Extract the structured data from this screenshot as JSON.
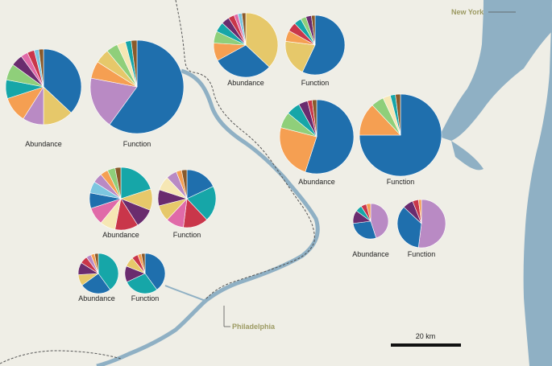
{
  "map": {
    "cities": [
      {
        "id": "new-york",
        "label": "New York"
      },
      {
        "id": "philadelphia",
        "label": "Philadelphia"
      }
    ],
    "scale_bar": {
      "label": "20 km"
    },
    "colors": {
      "land": "#efeee6",
      "water": "#8fb0c4",
      "border": "#555555",
      "city_label": "#9c9a62"
    }
  },
  "chart_data": {
    "type": "pie",
    "palette": {
      "blue": "#1f6fad",
      "yellow": "#e6c86a",
      "purple": "#b98ac4",
      "orange": "#f59f52",
      "teal": "#16a6a8",
      "green": "#8fcf7a",
      "plum": "#6a2c6e",
      "crimson": "#c9364a",
      "pink": "#e06aa8",
      "cream": "#f6e7b4",
      "lightblue": "#7cc6e0",
      "brown": "#8a5a2b"
    },
    "sites": [
      {
        "id": "site-west",
        "abundance": {
          "label": "Abundance",
          "slices": [
            {
              "color": "blue",
              "value": 37
            },
            {
              "color": "yellow",
              "value": 13
            },
            {
              "color": "purple",
              "value": 9
            },
            {
              "color": "orange",
              "value": 11
            },
            {
              "color": "teal",
              "value": 8
            },
            {
              "color": "green",
              "value": 7
            },
            {
              "color": "plum",
              "value": 5
            },
            {
              "color": "pink",
              "value": 3
            },
            {
              "color": "crimson",
              "value": 3
            },
            {
              "color": "lightblue",
              "value": 2
            },
            {
              "color": "brown",
              "value": 2
            }
          ]
        },
        "function": {
          "label": "Function",
          "slices": [
            {
              "color": "blue",
              "value": 60
            },
            {
              "color": "purple",
              "value": 18
            },
            {
              "color": "orange",
              "value": 6
            },
            {
              "color": "yellow",
              "value": 5
            },
            {
              "color": "green",
              "value": 4
            },
            {
              "color": "cream",
              "value": 3
            },
            {
              "color": "teal",
              "value": 2
            },
            {
              "color": "brown",
              "value": 2
            }
          ]
        }
      },
      {
        "id": "site-north",
        "abundance": {
          "label": "Abundance",
          "slices": [
            {
              "color": "yellow",
              "value": 37
            },
            {
              "color": "blue",
              "value": 30
            },
            {
              "color": "orange",
              "value": 9
            },
            {
              "color": "green",
              "value": 6
            },
            {
              "color": "teal",
              "value": 5
            },
            {
              "color": "plum",
              "value": 4
            },
            {
              "color": "crimson",
              "value": 3
            },
            {
              "color": "pink",
              "value": 2
            },
            {
              "color": "lightblue",
              "value": 2
            },
            {
              "color": "brown",
              "value": 2
            }
          ]
        },
        "function": {
          "label": "Function",
          "slices": [
            {
              "color": "blue",
              "value": 57
            },
            {
              "color": "yellow",
              "value": 20
            },
            {
              "color": "orange",
              "value": 6
            },
            {
              "color": "crimson",
              "value": 5
            },
            {
              "color": "teal",
              "value": 4
            },
            {
              "color": "green",
              "value": 3
            },
            {
              "color": "plum",
              "value": 3
            },
            {
              "color": "brown",
              "value": 2
            }
          ]
        }
      },
      {
        "id": "site-east",
        "abundance": {
          "label": "Abundance",
          "slices": [
            {
              "color": "blue",
              "value": 55
            },
            {
              "color": "orange",
              "value": 24
            },
            {
              "color": "green",
              "value": 7
            },
            {
              "color": "teal",
              "value": 6
            },
            {
              "color": "plum",
              "value": 4
            },
            {
              "color": "crimson",
              "value": 2
            },
            {
              "color": "brown",
              "value": 2
            }
          ]
        },
        "function": {
          "label": "Function",
          "slices": [
            {
              "color": "blue",
              "value": 75
            },
            {
              "color": "orange",
              "value": 13
            },
            {
              "color": "green",
              "value": 5
            },
            {
              "color": "cream",
              "value": 3
            },
            {
              "color": "teal",
              "value": 2
            },
            {
              "color": "brown",
              "value": 2
            }
          ]
        }
      },
      {
        "id": "site-center",
        "abundance": {
          "label": "Abundance",
          "slices": [
            {
              "color": "teal",
              "value": 20
            },
            {
              "color": "yellow",
              "value": 11
            },
            {
              "color": "plum",
              "value": 10
            },
            {
              "color": "crimson",
              "value": 12
            },
            {
              "color": "cream",
              "value": 8
            },
            {
              "color": "pink",
              "value": 9
            },
            {
              "color": "blue",
              "value": 8
            },
            {
              "color": "lightblue",
              "value": 6
            },
            {
              "color": "purple",
              "value": 5
            },
            {
              "color": "orange",
              "value": 4
            },
            {
              "color": "green",
              "value": 4
            },
            {
              "color": "brown",
              "value": 3
            }
          ]
        },
        "function": {
          "label": "Function",
          "slices": [
            {
              "color": "blue",
              "value": 18
            },
            {
              "color": "teal",
              "value": 20
            },
            {
              "color": "crimson",
              "value": 14
            },
            {
              "color": "pink",
              "value": 10
            },
            {
              "color": "yellow",
              "value": 9
            },
            {
              "color": "plum",
              "value": 9
            },
            {
              "color": "cream",
              "value": 8
            },
            {
              "color": "purple",
              "value": 6
            },
            {
              "color": "orange",
              "value": 3
            },
            {
              "color": "brown",
              "value": 3
            }
          ]
        }
      },
      {
        "id": "site-southwest",
        "abundance": {
          "label": "Abundance",
          "slices": [
            {
              "color": "teal",
              "value": 40
            },
            {
              "color": "blue",
              "value": 25
            },
            {
              "color": "yellow",
              "value": 9
            },
            {
              "color": "plum",
              "value": 10
            },
            {
              "color": "crimson",
              "value": 6
            },
            {
              "color": "purple",
              "value": 4
            },
            {
              "color": "orange",
              "value": 3
            },
            {
              "color": "brown",
              "value": 3
            }
          ]
        },
        "function": {
          "label": "Function",
          "slices": [
            {
              "color": "blue",
              "value": 40
            },
            {
              "color": "teal",
              "value": 28
            },
            {
              "color": "plum",
              "value": 13
            },
            {
              "color": "yellow",
              "value": 8
            },
            {
              "color": "crimson",
              "value": 5
            },
            {
              "color": "orange",
              "value": 3
            },
            {
              "color": "brown",
              "value": 3
            }
          ]
        }
      },
      {
        "id": "site-southeast",
        "abundance": {
          "label": "Abundance",
          "slices": [
            {
              "color": "purple",
              "value": 45
            },
            {
              "color": "blue",
              "value": 28
            },
            {
              "color": "plum",
              "value": 12
            },
            {
              "color": "teal",
              "value": 6
            },
            {
              "color": "crimson",
              "value": 5
            },
            {
              "color": "orange",
              "value": 4
            }
          ]
        },
        "function": {
          "label": "Function",
          "slices": [
            {
              "color": "purple",
              "value": 52
            },
            {
              "color": "blue",
              "value": 35
            },
            {
              "color": "plum",
              "value": 7
            },
            {
              "color": "crimson",
              "value": 4
            },
            {
              "color": "orange",
              "value": 2
            }
          ]
        }
      }
    ]
  }
}
